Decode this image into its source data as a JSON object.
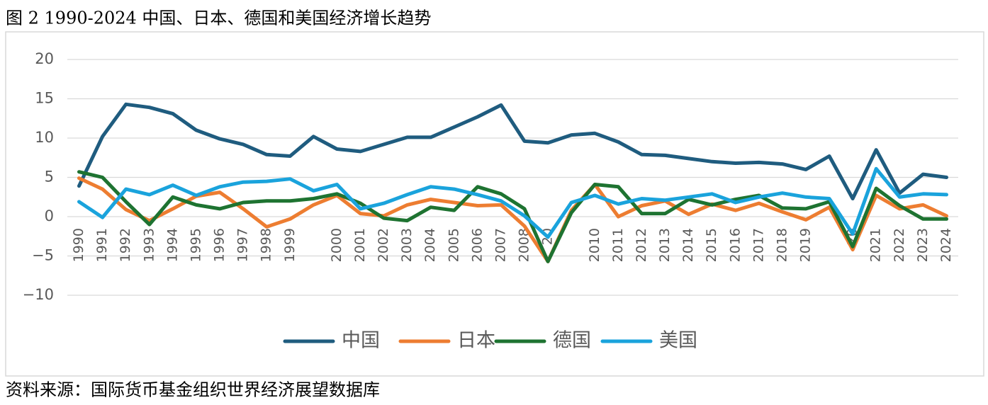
{
  "chart_data": {
    "type": "line",
    "title": "图 2 1990-2024 中国、日本、德国和美国经济增长趋势",
    "source": "资料来源：国际货币基金组织世界经济展望数据库",
    "categories": [
      "1990",
      "1991",
      "1992",
      "1993",
      "1994",
      "1995",
      "1996",
      "1997",
      "1998",
      "1999",
      null,
      "2000",
      "2001",
      "2002",
      "2003",
      "2004",
      "2005",
      "2006",
      "2007",
      "2008",
      "20",
      null,
      "2010",
      "2011",
      "2012",
      "2013",
      "2014",
      "2015",
      "2016",
      "2017",
      "2018",
      "2019",
      null,
      "20",
      "2021",
      "2022",
      "2023",
      "2024"
    ],
    "series": [
      {
        "name": "中国",
        "color": "#1f5c7f",
        "values": [
          3.9,
          10.2,
          14.3,
          13.9,
          13.1,
          11.0,
          9.9,
          9.2,
          7.9,
          7.7,
          10.2,
          8.6,
          8.3,
          9.2,
          10.1,
          10.1,
          11.4,
          12.7,
          14.2,
          9.6,
          9.4,
          10.4,
          10.6,
          9.5,
          7.9,
          7.8,
          7.4,
          7.0,
          6.8,
          6.9,
          6.7,
          6.0,
          7.7,
          2.3,
          8.5,
          3.0,
          5.4,
          5.0
        ]
      },
      {
        "name": "日本",
        "color": "#ed7d31",
        "values": [
          4.9,
          3.5,
          0.9,
          -0.5,
          1.0,
          2.6,
          3.1,
          1.0,
          -1.3,
          -0.3,
          1.5,
          2.7,
          0.4,
          0.1,
          1.5,
          2.2,
          1.8,
          1.4,
          1.5,
          -1.2,
          -5.7,
          0.8,
          4.1,
          0.0,
          1.4,
          2.0,
          0.3,
          1.6,
          0.8,
          1.7,
          0.6,
          -0.4,
          1.2,
          -4.2,
          2.7,
          1.0,
          1.5,
          0.1
        ]
      },
      {
        "name": "德国",
        "color": "#1e7331",
        "values": [
          5.7,
          5.0,
          1.9,
          -1.0,
          2.5,
          1.5,
          1.0,
          1.8,
          2.0,
          2.0,
          2.3,
          2.9,
          1.7,
          -0.2,
          -0.5,
          1.2,
          0.8,
          3.8,
          2.9,
          1.0,
          -5.7,
          0.5,
          4.1,
          3.8,
          0.4,
          0.4,
          2.2,
          1.5,
          2.2,
          2.7,
          1.1,
          1.0,
          1.9,
          -3.8,
          3.6,
          1.4,
          -0.3,
          -0.3
        ]
      },
      {
        "name": "美国",
        "color": "#1aa3dc",
        "values": [
          1.9,
          -0.1,
          3.5,
          2.8,
          4.0,
          2.7,
          3.8,
          4.4,
          4.5,
          4.8,
          3.3,
          4.1,
          1.0,
          1.7,
          2.8,
          3.8,
          3.5,
          2.8,
          2.0,
          0.1,
          -2.6,
          1.8,
          2.7,
          1.6,
          2.3,
          2.1,
          2.5,
          2.9,
          1.8,
          2.5,
          3.0,
          2.5,
          2.3,
          -2.2,
          6.1,
          2.5,
          2.9,
          2.8
        ]
      }
    ],
    "ylim": [
      -10,
      20
    ],
    "yticks": [
      {
        "value": -10,
        "label": "−10"
      },
      {
        "value": -5,
        "label": "−5"
      },
      0,
      5,
      10,
      15,
      20
    ],
    "grid": true,
    "legend": "bottom"
  }
}
